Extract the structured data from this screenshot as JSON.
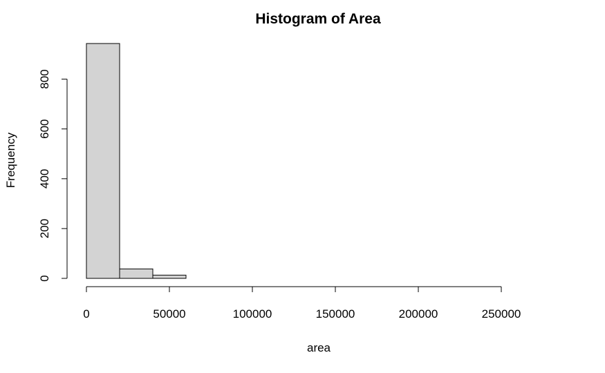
{
  "chart_data": {
    "type": "bar",
    "title": "Histogram of Area",
    "xlabel": "area",
    "ylabel": "Frequency",
    "bins": [
      {
        "start": 0,
        "end": 20000,
        "count": 943
      },
      {
        "start": 20000,
        "end": 40000,
        "count": 38
      },
      {
        "start": 40000,
        "end": 60000,
        "count": 13
      },
      {
        "start": 60000,
        "end": 80000,
        "count": 0
      },
      {
        "start": 80000,
        "end": 100000,
        "count": 0
      },
      {
        "start": 100000,
        "end": 120000,
        "count": 0
      },
      {
        "start": 120000,
        "end": 140000,
        "count": 0
      },
      {
        "start": 140000,
        "end": 160000,
        "count": 0
      },
      {
        "start": 160000,
        "end": 180000,
        "count": 0
      },
      {
        "start": 180000,
        "end": 200000,
        "count": 0
      },
      {
        "start": 200000,
        "end": 220000,
        "count": 0
      },
      {
        "start": 220000,
        "end": 240000,
        "count": 0
      },
      {
        "start": 240000,
        "end": 260000,
        "count": 0
      },
      {
        "start": 260000,
        "end": 280000,
        "count": 0
      }
    ],
    "x_ticks": [
      {
        "value": 0,
        "label": "0"
      },
      {
        "value": 50000,
        "label": "50000"
      },
      {
        "value": 100000,
        "label": "100000"
      },
      {
        "value": 150000,
        "label": "150000"
      },
      {
        "value": 200000,
        "label": "200000"
      },
      {
        "value": 250000,
        "label": "250000"
      }
    ],
    "y_ticks": [
      {
        "value": 0,
        "label": "0"
      },
      {
        "value": 200,
        "label": "200"
      },
      {
        "value": 400,
        "label": "400"
      },
      {
        "value": 600,
        "label": "600"
      },
      {
        "value": 800,
        "label": "800"
      }
    ],
    "xlim": [
      0,
      280000
    ],
    "ylim": [
      0,
      943
    ],
    "grid": false,
    "legend": "none",
    "bar_color": "#d3d3d3"
  }
}
